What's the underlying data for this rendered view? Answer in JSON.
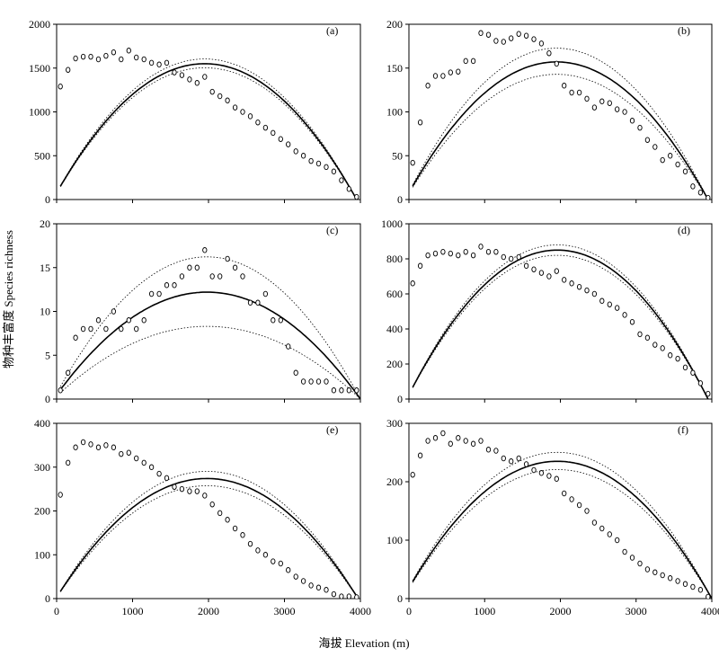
{
  "figure": {
    "xlabel": "海拔 Elevation (m)",
    "ylabel": "物种丰富度 Species richness"
  },
  "chart_data": [
    {
      "type": "scatter",
      "panel_label": "(a)",
      "xlim": [
        0,
        4000
      ],
      "ylim": [
        0,
        2000
      ],
      "yticks": [
        0,
        500,
        1000,
        1500,
        2000
      ],
      "xticks": [
        0,
        1000,
        2000,
        3000,
        4000
      ],
      "show_xtick_labels": false,
      "observed": {
        "x": [
          50,
          150,
          250,
          350,
          450,
          550,
          650,
          750,
          850,
          950,
          1050,
          1150,
          1250,
          1350,
          1450,
          1550,
          1650,
          1750,
          1850,
          1950,
          2050,
          2150,
          2250,
          2350,
          2450,
          2550,
          2650,
          2750,
          2850,
          2950,
          3050,
          3150,
          3250,
          3350,
          3450,
          3550,
          3650,
          3750,
          3850,
          3950
        ],
        "y": [
          1290,
          1480,
          1610,
          1630,
          1630,
          1600,
          1640,
          1680,
          1600,
          1700,
          1620,
          1600,
          1560,
          1540,
          1560,
          1450,
          1420,
          1370,
          1330,
          1400,
          1230,
          1180,
          1130,
          1050,
          1000,
          950,
          880,
          820,
          760,
          690,
          630,
          550,
          500,
          440,
          410,
          370,
          320,
          220,
          120,
          30
        ]
      },
      "fit": {
        "peak_x": 1950,
        "peak_y": 1550,
        "x_end": 3950,
        "lower_ratio": 0.97,
        "upper_ratio": 1.035
      }
    },
    {
      "type": "scatter",
      "panel_label": "(b)",
      "xlim": [
        0,
        4000
      ],
      "ylim": [
        0,
        200
      ],
      "yticks": [
        0,
        50,
        100,
        150,
        200
      ],
      "xticks": [
        0,
        1000,
        2000,
        3000,
        4000
      ],
      "show_xtick_labels": false,
      "observed": {
        "x": [
          50,
          150,
          250,
          350,
          450,
          550,
          650,
          750,
          850,
          950,
          1050,
          1150,
          1250,
          1350,
          1450,
          1550,
          1650,
          1750,
          1850,
          1950,
          2050,
          2150,
          2250,
          2350,
          2450,
          2550,
          2650,
          2750,
          2850,
          2950,
          3050,
          3150,
          3250,
          3350,
          3450,
          3550,
          3650,
          3750,
          3850,
          3950
        ],
        "y": [
          42,
          88,
          130,
          141,
          141,
          145,
          146,
          158,
          158,
          190,
          188,
          181,
          180,
          184,
          189,
          187,
          183,
          178,
          167,
          155,
          130,
          122,
          122,
          115,
          105,
          112,
          110,
          103,
          100,
          90,
          82,
          68,
          60,
          45,
          50,
          40,
          32,
          15,
          8,
          2
        ]
      },
      "fit": {
        "peak_x": 1950,
        "peak_y": 157,
        "x_end": 3950,
        "lower_ratio": 0.91,
        "upper_ratio": 1.1
      }
    },
    {
      "type": "scatter",
      "panel_label": "(c)",
      "xlim": [
        0,
        4000
      ],
      "ylim": [
        0,
        20
      ],
      "yticks": [
        0,
        5,
        10,
        15,
        20
      ],
      "xticks": [
        0,
        1000,
        2000,
        3000,
        4000
      ],
      "show_xtick_labels": false,
      "observed": {
        "x": [
          50,
          150,
          250,
          350,
          450,
          550,
          650,
          750,
          850,
          950,
          1050,
          1150,
          1250,
          1350,
          1450,
          1550,
          1650,
          1750,
          1850,
          1950,
          2050,
          2150,
          2250,
          2350,
          2450,
          2550,
          2650,
          2750,
          2850,
          2950,
          3050,
          3150,
          3250,
          3350,
          3450,
          3550,
          3650,
          3750,
          3850,
          3950
        ],
        "y": [
          1,
          3,
          7,
          8,
          8,
          9,
          8,
          10,
          8,
          9,
          8,
          9,
          12,
          12,
          13,
          13,
          14,
          15,
          15,
          17,
          14,
          14,
          16,
          15,
          14,
          11,
          11,
          12,
          9,
          9,
          6,
          3,
          2,
          2,
          2,
          2,
          1,
          1,
          1,
          1
        ]
      },
      "fit": {
        "peak_x": 1980,
        "peak_y": 12.2,
        "x_end": 4000,
        "lower_ratio": 0.68,
        "upper_ratio": 1.33
      }
    },
    {
      "type": "scatter",
      "panel_label": "(d)",
      "xlim": [
        0,
        4000
      ],
      "ylim": [
        0,
        1000
      ],
      "yticks": [
        0,
        200,
        400,
        600,
        800,
        1000
      ],
      "xticks": [
        0,
        1000,
        2000,
        3000,
        4000
      ],
      "show_xtick_labels": false,
      "observed": {
        "x": [
          50,
          150,
          250,
          350,
          450,
          550,
          650,
          750,
          850,
          950,
          1050,
          1150,
          1250,
          1350,
          1450,
          1550,
          1650,
          1750,
          1850,
          1950,
          2050,
          2150,
          2250,
          2350,
          2450,
          2550,
          2650,
          2750,
          2850,
          2950,
          3050,
          3150,
          3250,
          3350,
          3450,
          3550,
          3650,
          3750,
          3850,
          3950
        ],
        "y": [
          660,
          760,
          820,
          830,
          840,
          830,
          820,
          840,
          820,
          870,
          840,
          840,
          810,
          800,
          810,
          760,
          740,
          720,
          700,
          730,
          680,
          660,
          640,
          620,
          600,
          560,
          540,
          520,
          480,
          440,
          370,
          350,
          310,
          290,
          250,
          230,
          180,
          150,
          90,
          30
        ]
      },
      "fit": {
        "peak_x": 1960,
        "peak_y": 850,
        "x_end": 3950,
        "lower_ratio": 0.965,
        "upper_ratio": 1.035
      }
    },
    {
      "type": "scatter",
      "panel_label": "(e)",
      "xlim": [
        0,
        4000
      ],
      "ylim": [
        0,
        400
      ],
      "yticks": [
        0,
        100,
        200,
        300,
        400
      ],
      "xticks": [
        0,
        1000,
        2000,
        3000,
        4000
      ],
      "show_xtick_labels": true,
      "observed": {
        "x": [
          50,
          150,
          250,
          350,
          450,
          550,
          650,
          750,
          850,
          950,
          1050,
          1150,
          1250,
          1350,
          1450,
          1550,
          1650,
          1750,
          1850,
          1950,
          2050,
          2150,
          2250,
          2350,
          2450,
          2550,
          2650,
          2750,
          2850,
          2950,
          3050,
          3150,
          3250,
          3350,
          3450,
          3550,
          3650,
          3750,
          3850,
          3950
        ],
        "y": [
          237,
          310,
          345,
          357,
          352,
          345,
          350,
          345,
          330,
          333,
          320,
          310,
          300,
          285,
          275,
          255,
          250,
          245,
          245,
          235,
          215,
          195,
          180,
          160,
          145,
          125,
          110,
          100,
          85,
          80,
          65,
          50,
          40,
          30,
          25,
          20,
          10,
          5,
          5,
          3
        ]
      },
      "fit": {
        "peak_x": 1980,
        "peak_y": 274,
        "x_end": 3970,
        "lower_ratio": 0.94,
        "upper_ratio": 1.06
      }
    },
    {
      "type": "scatter",
      "panel_label": "(f)",
      "xlim": [
        0,
        4000
      ],
      "ylim": [
        0,
        300
      ],
      "yticks": [
        0,
        100,
        200,
        300
      ],
      "xticks": [
        0,
        1000,
        2000,
        3000,
        4000
      ],
      "show_xtick_labels": true,
      "observed": {
        "x": [
          50,
          150,
          250,
          350,
          450,
          550,
          650,
          750,
          850,
          950,
          1050,
          1150,
          1250,
          1350,
          1450,
          1550,
          1650,
          1750,
          1850,
          1950,
          2050,
          2150,
          2250,
          2350,
          2450,
          2550,
          2650,
          2750,
          2850,
          2950,
          3050,
          3150,
          3250,
          3350,
          3450,
          3550,
          3650,
          3750,
          3850,
          3950
        ],
        "y": [
          212,
          245,
          270,
          275,
          283,
          265,
          275,
          270,
          265,
          270,
          255,
          253,
          240,
          235,
          240,
          230,
          220,
          215,
          210,
          205,
          180,
          170,
          160,
          150,
          130,
          120,
          110,
          100,
          80,
          70,
          60,
          50,
          45,
          40,
          35,
          30,
          25,
          20,
          15,
          3
        ]
      },
      "fit": {
        "peak_x": 1960,
        "peak_y": 235,
        "x_end": 4000,
        "lower_ratio": 0.94,
        "upper_ratio": 1.065
      }
    }
  ]
}
